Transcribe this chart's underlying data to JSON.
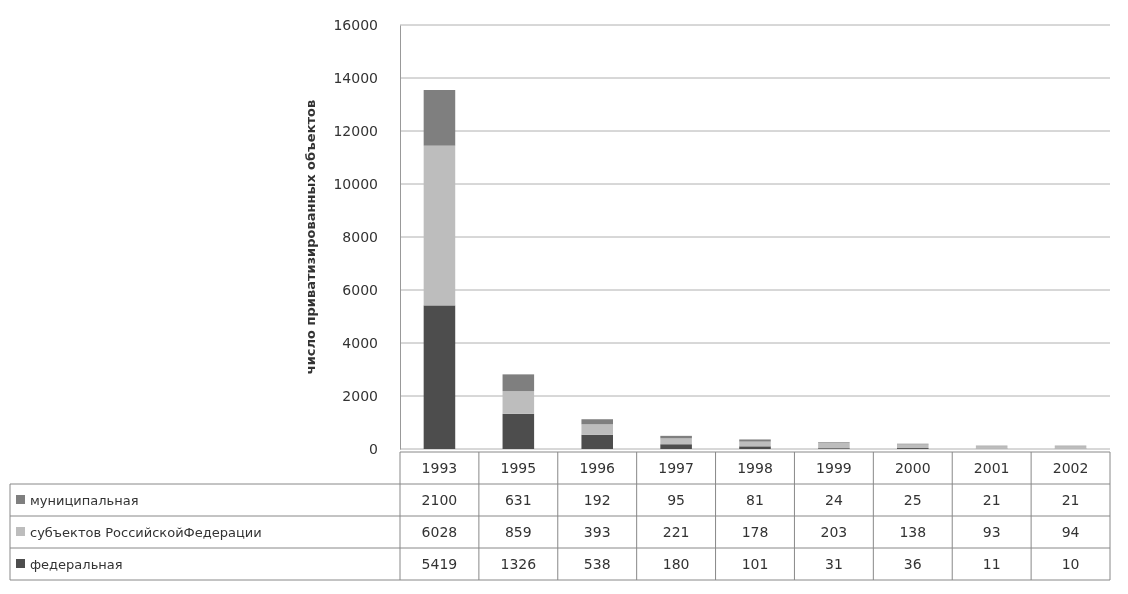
{
  "chart_data": {
    "type": "bar",
    "stacked": true,
    "ylabel": "число приватизированных объектов",
    "categories": [
      "1993",
      "1995",
      "1996",
      "1997",
      "1998",
      "1999",
      "2000",
      "2001",
      "2002"
    ],
    "series": [
      {
        "name": "федеральная",
        "color": "#4d4d4d",
        "values": [
          5419,
          1326,
          538,
          180,
          101,
          31,
          36,
          11,
          10
        ]
      },
      {
        "name": "субъектов РоссийскойФедерации",
        "color": "#bdbdbd",
        "values": [
          6028,
          859,
          393,
          221,
          178,
          203,
          138,
          93,
          94
        ]
      },
      {
        "name": "муниципальная",
        "color": "#7f7f7f",
        "values": [
          2100,
          631,
          192,
          95,
          81,
          24,
          25,
          21,
          21
        ]
      }
    ],
    "ylim": [
      0,
      16000
    ],
    "yticks": [
      0,
      2000,
      4000,
      6000,
      8000,
      10000,
      12000,
      14000,
      16000
    ],
    "grid": "y",
    "legend": "bottom",
    "data_labels": true
  }
}
